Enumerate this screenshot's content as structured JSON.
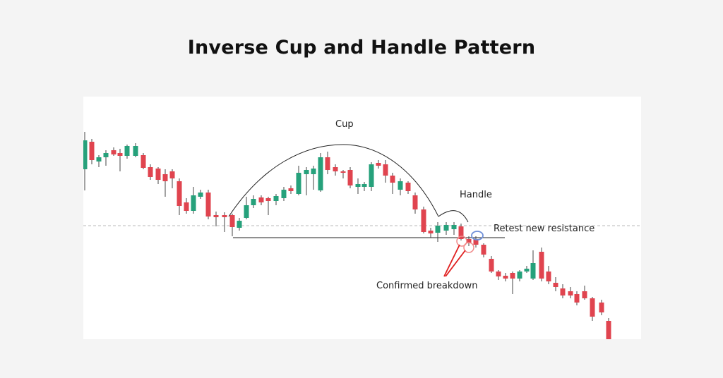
{
  "title": "Inverse Cup and Handle Pattern",
  "labels": {
    "cup": "Cup",
    "handle": "Handle",
    "retest": "Retest new resistance",
    "breakdown": "Confirmed breakdown"
  },
  "colors": {
    "bullish": "#26a17b",
    "bearish": "#e0444f",
    "outline": "#222222",
    "guide": "#b8b8b8",
    "arrow": "#e02020",
    "retest_circle": "#6f8fd8",
    "breakdown_circle": "#f08a8a"
  }
}
